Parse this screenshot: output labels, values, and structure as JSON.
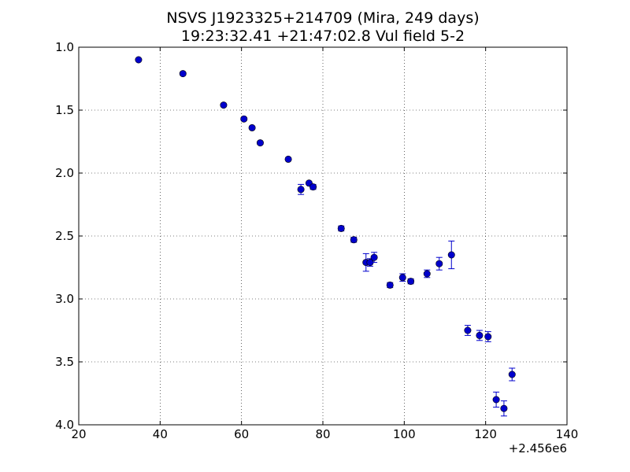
{
  "chart_data": {
    "type": "scatter",
    "title_line1": "NSVS J1923325+214709 (Mira, 249 days)",
    "title_line2": "19:23:32.41 +21:47:02.8 Vul field 5-2",
    "xlabel": "",
    "ylabel": "",
    "x_offset_label": "+2.456e6",
    "xlim": [
      20,
      140
    ],
    "ylim": [
      1.0,
      4.0
    ],
    "y_inverted": true,
    "grid": true,
    "x_ticks": [
      20,
      40,
      60,
      80,
      100,
      120,
      140
    ],
    "x_tick_labels": [
      "20",
      "40",
      "60",
      "80",
      "100",
      "120",
      "140"
    ],
    "y_ticks": [
      1.0,
      1.5,
      2.0,
      2.5,
      3.0,
      3.5,
      4.0
    ],
    "y_tick_labels": [
      "1.0",
      "1.5",
      "2.0",
      "2.5",
      "3.0",
      "3.5",
      "4.0"
    ],
    "marker_color": "#0000cc",
    "errorbar_color": "#0000cc",
    "points": [
      {
        "x": 34.7,
        "y": 1.1,
        "err": 0.0
      },
      {
        "x": 45.6,
        "y": 1.21,
        "err": 0.0
      },
      {
        "x": 55.6,
        "y": 1.46,
        "err": 0.0
      },
      {
        "x": 60.6,
        "y": 1.57,
        "err": 0.01
      },
      {
        "x": 62.6,
        "y": 1.64,
        "err": 0.01
      },
      {
        "x": 64.6,
        "y": 1.76,
        "err": 0.01
      },
      {
        "x": 71.5,
        "y": 1.89,
        "err": 0.01
      },
      {
        "x": 74.6,
        "y": 2.13,
        "err": 0.04
      },
      {
        "x": 76.6,
        "y": 2.08,
        "err": 0.01
      },
      {
        "x": 77.6,
        "y": 2.11,
        "err": 0.02
      },
      {
        "x": 84.5,
        "y": 2.44,
        "err": 0.02
      },
      {
        "x": 87.6,
        "y": 2.53,
        "err": 0.02
      },
      {
        "x": 90.6,
        "y": 2.71,
        "err": 0.07
      },
      {
        "x": 91.6,
        "y": 2.71,
        "err": 0.03
      },
      {
        "x": 92.6,
        "y": 2.67,
        "err": 0.04
      },
      {
        "x": 96.5,
        "y": 2.89,
        "err": 0.02
      },
      {
        "x": 99.6,
        "y": 2.83,
        "err": 0.03
      },
      {
        "x": 101.6,
        "y": 2.86,
        "err": 0.02
      },
      {
        "x": 105.6,
        "y": 2.8,
        "err": 0.03
      },
      {
        "x": 108.6,
        "y": 2.72,
        "err": 0.05
      },
      {
        "x": 111.6,
        "y": 2.65,
        "err": 0.11
      },
      {
        "x": 115.6,
        "y": 3.25,
        "err": 0.04
      },
      {
        "x": 118.5,
        "y": 3.29,
        "err": 0.04
      },
      {
        "x": 120.6,
        "y": 3.3,
        "err": 0.04
      },
      {
        "x": 122.6,
        "y": 3.8,
        "err": 0.06
      },
      {
        "x": 124.5,
        "y": 3.87,
        "err": 0.06
      },
      {
        "x": 126.5,
        "y": 3.6,
        "err": 0.05
      }
    ]
  }
}
